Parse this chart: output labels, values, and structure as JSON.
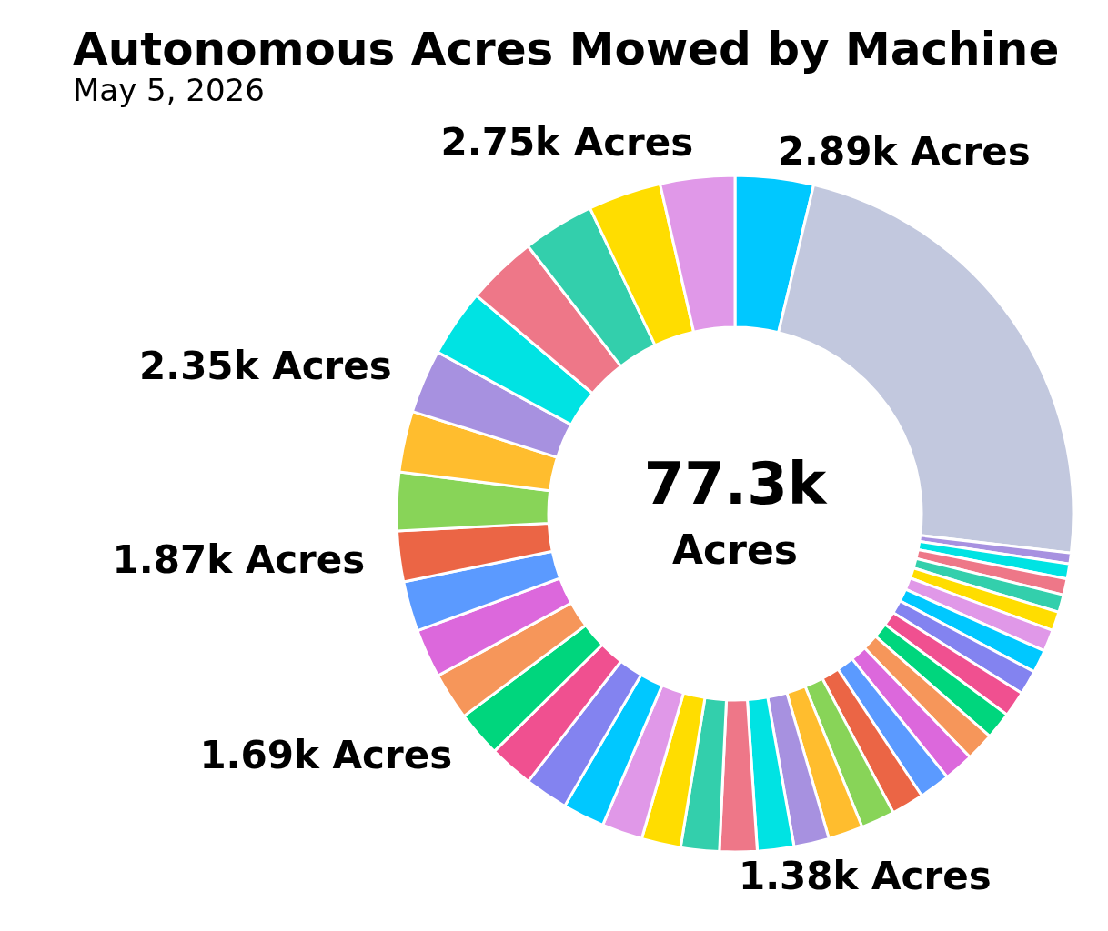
{
  "chart_data": {
    "type": "donut",
    "title": "Autonomous Acres Mowed by Machine",
    "subtitle": "May 5, 2026",
    "annotations": [
      "77.3k",
      "Acres"
    ],
    "categories": [
      null,
      null,
      null,
      null,
      null,
      null,
      null,
      null,
      null,
      null,
      null,
      null,
      null,
      null,
      null,
      null,
      null,
      null,
      null,
      null,
      null,
      null,
      null,
      null,
      null,
      null,
      null,
      null,
      null,
      null,
      null,
      null,
      null,
      null,
      null,
      null,
      null,
      null,
      null,
      null
    ],
    "values": [
      2890,
      17870,
      400,
      550,
      600,
      650,
      700,
      800,
      850,
      900,
      950,
      1000,
      1050,
      1100,
      1150,
      1200,
      1250,
      1280,
      1300,
      1350,
      1380,
      1420,
      1450,
      1500,
      1550,
      1600,
      1650,
      1690,
      1750,
      1800,
      1850,
      1870,
      2150,
      2250,
      2350,
      2500,
      2600,
      2650,
      2700,
      2750
    ],
    "value_labels": [
      "2.89k Acres",
      null,
      null,
      null,
      null,
      null,
      null,
      null,
      null,
      null,
      null,
      null,
      null,
      null,
      null,
      null,
      null,
      null,
      null,
      null,
      "1.38k Acres",
      null,
      null,
      null,
      null,
      null,
      null,
      "1.69k Acres",
      null,
      null,
      null,
      "1.87k Acres",
      null,
      null,
      "2.35k Acres",
      null,
      null,
      null,
      null,
      "2.75k Acres"
    ],
    "colors": [
      "#00c8ff",
      "#c2c8de",
      "#a791e0",
      "#00e3e3",
      "#ee7788",
      "#33cfac",
      "#ffdd00",
      "#e098e8",
      "#00c8ff",
      "#8383f0",
      "#f05090",
      "#00d67d",
      "#f6965a",
      "#dc68dc",
      "#5b9aff",
      "#eb6545",
      "#88d458",
      "#ffbd2e",
      "#a791e0",
      "#00e3e3",
      "#ee7788",
      "#33cfac",
      "#ffdd00",
      "#e098e8",
      "#00c8ff",
      "#8383f0",
      "#f05090",
      "#00d67d",
      "#f6965a",
      "#dc68dc",
      "#5b9aff",
      "#eb6545",
      "#88d458",
      "#ffbd2e",
      "#a791e0",
      "#00e3e3",
      "#ee7788",
      "#33cfac",
      "#ffdd00",
      "#e098e8"
    ],
    "legend": false
  }
}
